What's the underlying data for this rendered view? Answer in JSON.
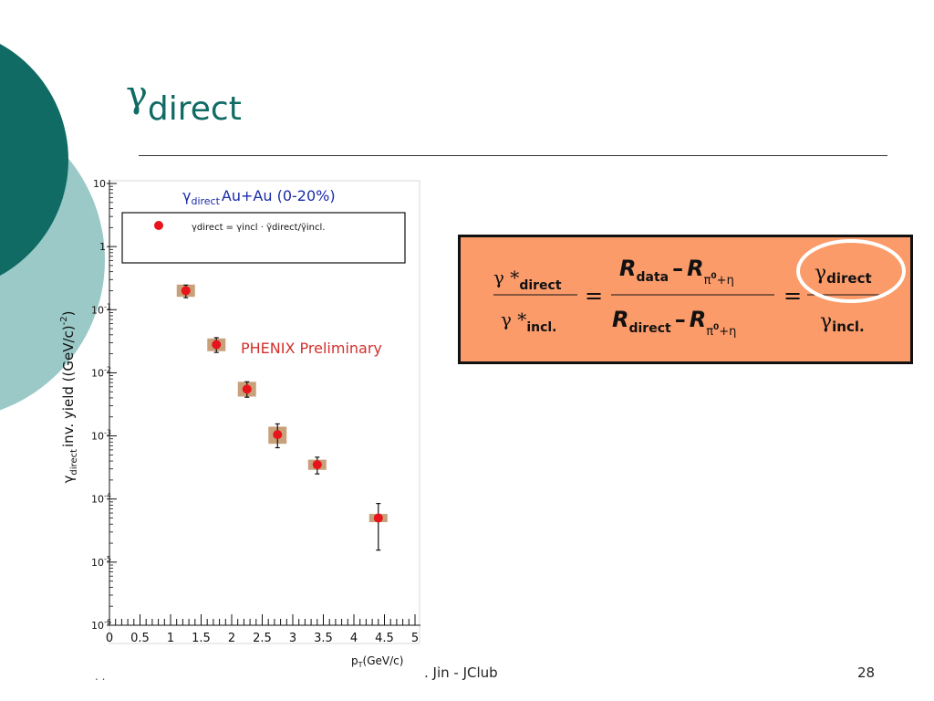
{
  "slide": {
    "title_symbol": "γ",
    "title_subscript": "direct",
    "footer_author": ". Jin - JClub",
    "footer_dots": ". .",
    "page_number": "28"
  },
  "colors": {
    "teal_dark": "#0f6b63",
    "teal_light": "#9ac9c7",
    "formula_bg": "#fb9b6a",
    "marker": "#e8141b",
    "syst_box": "#c8a07a",
    "legend_title": "#1a2aa8",
    "preliminary": "#d2302c"
  },
  "chart_data": {
    "type": "scatter",
    "title_gamma": "γ",
    "title_sub": "direct",
    "title_rest": "Au+Au (0-20%)",
    "preliminary_label": "PHENIX Preliminary",
    "legend_text": "γdirect = γincl · γ̃direct/γ̃incl.",
    "xlabel_main": "p",
    "xlabel_sub": "T",
    "xlabel_unit": "(GeV/c)",
    "ylabel_gamma": "γ",
    "ylabel_sub": "direct",
    "ylabel_rest": "inv. yield ((GeV/c)",
    "ylabel_sup": "-2",
    "ylabel_end": ")",
    "yscale": "log",
    "xlim": [
      0,
      5
    ],
    "ylim_exp": [
      -6,
      1
    ],
    "x_tick_labels": [
      "0",
      "0.5",
      "1",
      "1.5",
      "2",
      "2.5",
      "3",
      "3.5",
      "4",
      "4.5",
      "5"
    ],
    "y_tick_labels": [
      {
        "base": "10",
        "exp": "",
        "text": "10"
      },
      {
        "base": "1",
        "exp": "",
        "text": "1"
      },
      {
        "base": "10",
        "exp": "-1"
      },
      {
        "base": "10",
        "exp": "-2"
      },
      {
        "base": "10",
        "exp": "-3"
      },
      {
        "base": "10",
        "exp": "-4"
      },
      {
        "base": "10",
        "exp": "-5"
      },
      {
        "base": "10",
        "exp": "-6"
      }
    ],
    "points": [
      {
        "x": 1.25,
        "y": 0.2,
        "y_low": 0.155,
        "y_high": 0.245,
        "syst_low": 0.16,
        "syst_high": 0.25
      },
      {
        "x": 1.75,
        "y": 0.028,
        "y_low": 0.021,
        "y_high": 0.036,
        "syst_low": 0.022,
        "syst_high": 0.035
      },
      {
        "x": 2.25,
        "y": 0.0055,
        "y_low": 0.0041,
        "y_high": 0.0072,
        "syst_low": 0.0042,
        "syst_high": 0.0072
      },
      {
        "x": 2.75,
        "y": 0.00105,
        "y_low": 0.00065,
        "y_high": 0.00155,
        "syst_low": 0.00075,
        "syst_high": 0.0014
      },
      {
        "x": 3.4,
        "y": 0.00035,
        "y_low": 0.00025,
        "y_high": 0.00046,
        "syst_low": 0.00029,
        "syst_high": 0.00042
      },
      {
        "x": 4.4,
        "y": 5e-05,
        "y_low": 1.55e-05,
        "y_high": 8.5e-05,
        "syst_low": 4.3e-05,
        "syst_high": 5.8e-05
      }
    ]
  },
  "formula": {
    "lhs_num_sym": "γ *",
    "lhs_num_sub": "direct",
    "lhs_den_sym": "γ *",
    "lhs_den_sub": "incl.",
    "eq": "=",
    "mid_num_r1": "R",
    "mid_num_sub1": "data",
    "minus": "–",
    "mid_num_r2": "R",
    "pi_eta": "π",
    "pi_sup": "0",
    "plus_eta": "+η",
    "mid_den_r1": "R",
    "mid_den_sub1": "direct",
    "rhs_num_sym": "γ",
    "rhs_num_sub": "direct",
    "rhs_den_sym": "γ",
    "rhs_den_sub": "incl."
  }
}
